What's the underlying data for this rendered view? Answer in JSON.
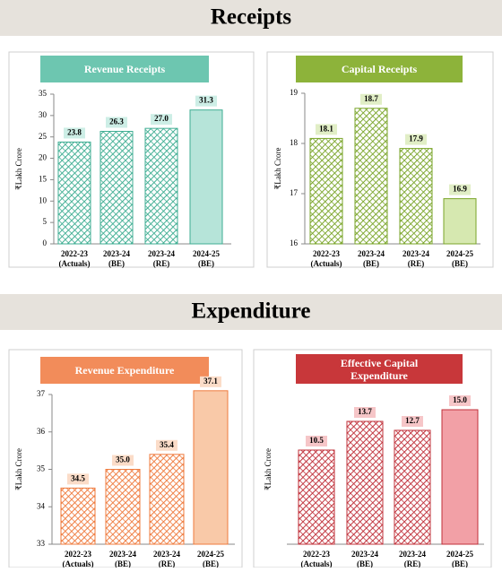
{
  "sections": [
    {
      "title": "Receipts"
    },
    {
      "title": "Expenditure"
    }
  ],
  "chart_data": [
    {
      "type": "bar",
      "title": "Revenue Receipts",
      "ylabel": "₹Lakh Crore",
      "categories": [
        [
          "2022-23",
          "(Actuals)"
        ],
        [
          "2023-24",
          "(BE)"
        ],
        [
          "2023-24",
          "(RE)"
        ],
        [
          "2024-25",
          "(BE)"
        ]
      ],
      "values": [
        23.8,
        26.3,
        27.0,
        31.3
      ],
      "value_labels": [
        "23.8",
        "26.3",
        "27.0",
        "31.3"
      ],
      "ylim": [
        0,
        35
      ],
      "yticks": [
        0,
        5,
        10,
        15,
        20,
        25,
        30,
        35
      ],
      "color": "#3fae93",
      "highlight_color": "#b6e4d9",
      "title_color": "#6dc6b0",
      "label_color": "#cdeee6"
    },
    {
      "type": "bar",
      "title": "Capital Receipts",
      "ylabel": "₹Lakh Crore",
      "categories": [
        [
          "2022-23",
          "(Actuals)"
        ],
        [
          "2023-24",
          "(BE)"
        ],
        [
          "2023-24",
          "(RE)"
        ],
        [
          "2024-25",
          "(BE)"
        ]
      ],
      "values": [
        18.1,
        18.7,
        17.9,
        16.9
      ],
      "value_labels": [
        "18.1",
        "18.7",
        "17.9",
        "16.9"
      ],
      "ylim": [
        16,
        19
      ],
      "yticks": [
        16,
        17,
        18,
        19
      ],
      "color": "#7aa52a",
      "highlight_color": "#d6e8b0",
      "title_color": "#8db33a",
      "label_color": "#e1eec6"
    },
    {
      "type": "bar",
      "title": "Revenue Expenditure",
      "ylabel": "₹Lakh Crore",
      "categories": [
        [
          "2022-23",
          "(Actuals)"
        ],
        [
          "2023-24",
          "(BE)"
        ],
        [
          "2023-24",
          "(RE)"
        ],
        [
          "2024-25",
          "(BE)"
        ]
      ],
      "values": [
        34.5,
        35.0,
        35.4,
        37.1
      ],
      "value_labels": [
        "34.5",
        "35.0",
        "35.4",
        "37.1"
      ],
      "ylim": [
        33,
        37
      ],
      "yticks": [
        33,
        34,
        35,
        36,
        37
      ],
      "color": "#ef7b3e",
      "highlight_color": "#f9c9a8",
      "title_color": "#f28c5a",
      "label_color": "#fbdcc8"
    },
    {
      "type": "bar",
      "title": "Effective Capital Expenditure",
      "ylabel": "₹Lakh Crore",
      "categories": [
        [
          "2022-23",
          "(Actuals)"
        ],
        [
          "2023-24",
          "(BE)"
        ],
        [
          "2023-24",
          "(RE)"
        ],
        [
          "2024-25",
          "(BE)"
        ]
      ],
      "values": [
        10.5,
        13.7,
        12.7,
        15.0
      ],
      "value_labels": [
        "10.5",
        "13.7",
        "12.7",
        "15.0"
      ],
      "ylim": [
        0,
        16.7
      ],
      "color": "#c0303a",
      "highlight_color": "#f2a0a6",
      "title_color": "#c8373a",
      "label_color": "#f6c6c8"
    }
  ]
}
